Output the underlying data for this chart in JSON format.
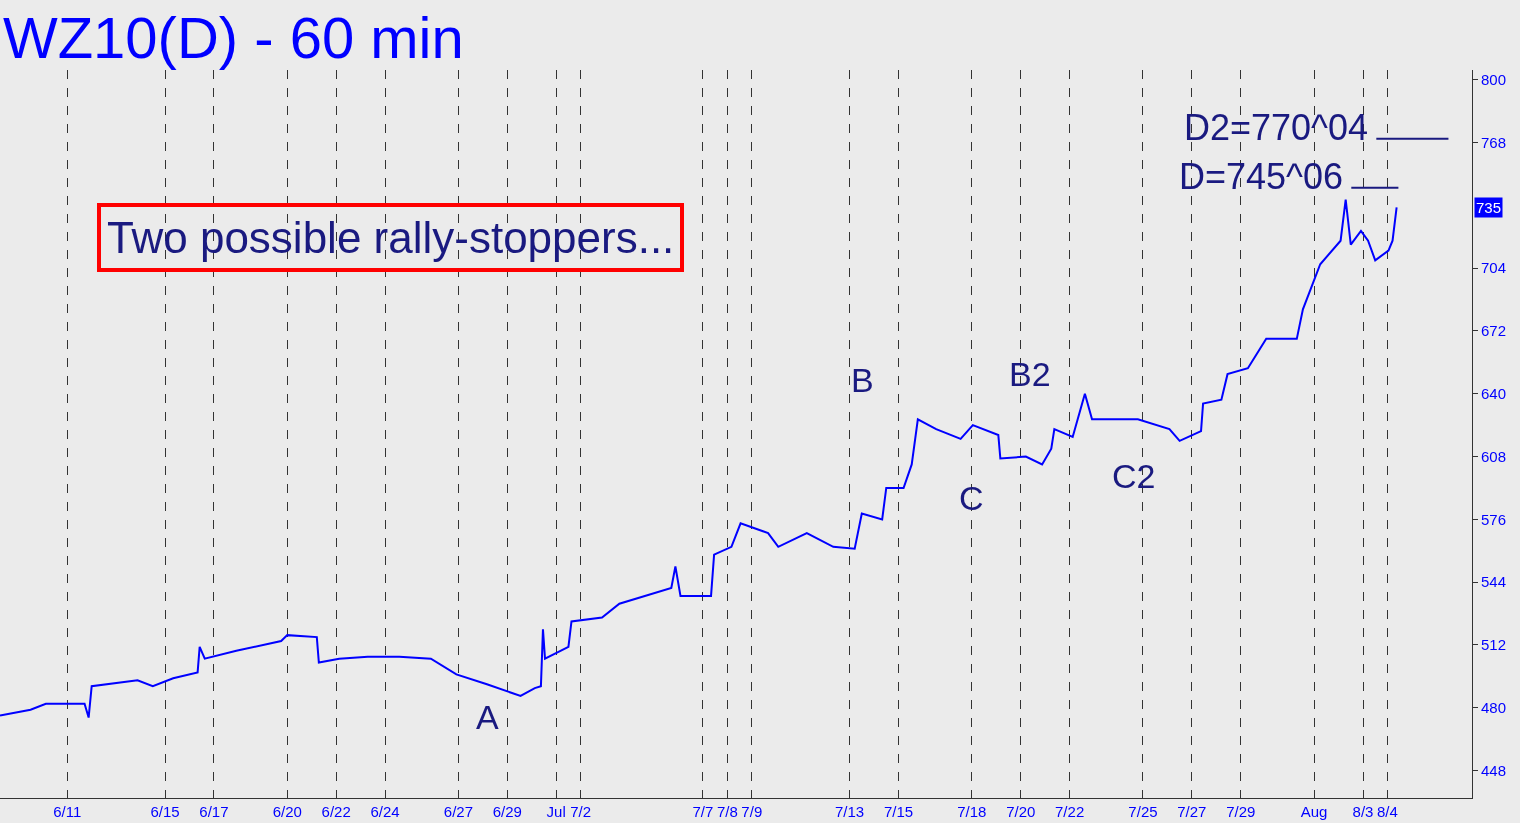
{
  "chart_data": {
    "type": "line",
    "title": "WZ10(D) - 60 min",
    "x": [
      "--06-08T06:00",
      "--06-09T12:00",
      "--06-10T03:00",
      "--06-11T17:00",
      "--06-11T21:00",
      "--06-12T00:00",
      "--06-13T21:00",
      "--06-14T12:00",
      "--06-15T08:00",
      "--06-16T08:00",
      "--06-16T10:00",
      "--06-16T15:00",
      "--06-17T22:00",
      "--06-19T18:00",
      "--06-20T00:00",
      "--06-21T05:00",
      "--06-21T07:00",
      "--06-22T03:00",
      "--06-23T07:00",
      "--06-24T14:00",
      "--06-25T21:00",
      "--06-26T22:00",
      "--06-28T04:00",
      "--06-29T13:00",
      "--06-30T03:00",
      "--06-30T09:00",
      "--06-30T11:00",
      "--06-30T13:00",
      "--07-01T12:00",
      "--07-01T15:00",
      "--07-02T21:00",
      "--07-03T14:00",
      "--07-05T17:00",
      "--07-05T21:00",
      "--07-06T02:00",
      "--07-07T08:00",
      "--07-07T11:00",
      "--07-08T04:00",
      "--07-08T13:00",
      "--07-09T16:00",
      "--07-10T02:00",
      "--07-11T06:00",
      "--07-12T08:00",
      "--07-13T05:00",
      "--07-13T12:00",
      "--07-14T08:00",
      "--07-14T12:00",
      "--07-15T05:00",
      "--07-15T13:00",
      "--07-15T19:00",
      "--07-16T13:00",
      "--07-17T13:00",
      "--07-18T01:00",
      "--07-19T02:00",
      "--07-19T04:00",
      "--07-20T05:00",
      "--07-20T21:00",
      "--07-21T06:00",
      "--07-21T09:00",
      "--07-22T03:00",
      "--07-22T15:00",
      "--07-22T22:00",
      "--07-24T19:00",
      "--07-26T02:00",
      "--07-26T12:00",
      "--07-27T09:00",
      "--07-27T11:00",
      "--07-28T05:00",
      "--07-28T11:00",
      "--07-29T07:00",
      "--07-30T01:00",
      "--07-31T07:00",
      "--07-31T13:00",
      "--08-01T06:00",
      "--08-02T02:00",
      "--08-02T07:00",
      "--08-02T12:00",
      "--08-02T22:00",
      "--08-03T05:00",
      "--08-03T12:00",
      "--08-04T01:00",
      "--08-04T05:00",
      "--08-04T09:00"
    ],
    "series": [
      {
        "color": "#0000ff",
        "values": [
          476,
          479,
          482,
          482,
          475,
          491,
          494,
          491,
          495,
          498,
          511,
          505,
          509,
          514,
          517,
          516,
          503,
          505,
          506,
          506,
          505,
          497,
          492,
          486,
          490,
          491,
          520,
          505,
          511,
          524,
          526,
          533,
          541,
          552,
          537,
          537,
          558,
          562,
          574,
          569,
          562,
          569,
          562,
          561,
          579,
          576,
          592,
          592,
          604,
          627,
          622,
          617,
          624,
          619,
          607,
          608,
          604,
          612,
          622,
          618,
          640,
          627,
          627,
          622,
          616,
          621,
          635,
          637,
          650,
          653,
          668,
          668,
          683,
          706,
          718,
          739,
          716,
          723,
          718,
          708,
          713,
          718,
          735
        ]
      }
    ],
    "xlim": [
      "--06-08T06:00",
      "--08-07T11:00"
    ],
    "xticks": [
      {
        "value": "--06-11",
        "label": "6/11"
      },
      {
        "value": "--06-15",
        "label": "6/15"
      },
      {
        "value": "--06-17",
        "label": "6/17"
      },
      {
        "value": "--06-20",
        "label": "6/20"
      },
      {
        "value": "--06-22",
        "label": "6/22"
      },
      {
        "value": "--06-24",
        "label": "6/24"
      },
      {
        "value": "--06-27",
        "label": "6/27"
      },
      {
        "value": "--06-29",
        "label": "6/29"
      },
      {
        "value": "--07-01",
        "label": "Jul"
      },
      {
        "value": "--07-02",
        "label": "7/2"
      },
      {
        "value": "--07-07",
        "label": "7/7"
      },
      {
        "value": "--07-08",
        "label": "7/8"
      },
      {
        "value": "--07-09",
        "label": "7/9"
      },
      {
        "value": "--07-13",
        "label": "7/13"
      },
      {
        "value": "--07-15",
        "label": "7/15"
      },
      {
        "value": "--07-18",
        "label": "7/18"
      },
      {
        "value": "--07-20",
        "label": "7/20"
      },
      {
        "value": "--07-22",
        "label": "7/22"
      },
      {
        "value": "--07-25",
        "label": "7/25"
      },
      {
        "value": "--07-27",
        "label": "7/27"
      },
      {
        "value": "--07-29",
        "label": "7/29"
      },
      {
        "value": "--08-01",
        "label": "Aug"
      },
      {
        "value": "--08-03",
        "label": "8/3"
      },
      {
        "value": "--08-04",
        "label": "8/4"
      }
    ],
    "ylim": [
      434,
      805
    ],
    "yticks": [
      448,
      480,
      512,
      544,
      576,
      608,
      640,
      672,
      704,
      768,
      800
    ],
    "grid": "x",
    "ref_lines": [
      {
        "axis": "y",
        "value": 770,
        "label": "D2=770^04",
        "color": "#1a1a80",
        "line_style": "solid"
      },
      {
        "axis": "y",
        "value": 745,
        "label": "D=745^06",
        "color": "#1a1a80",
        "line_style": "solid"
      }
    ],
    "annotations": [
      "Two possible rally-stoppers...",
      "A",
      "B",
      "C",
      "B2",
      "C2",
      {
        "text": "735",
        "y": 735
      }
    ]
  }
}
